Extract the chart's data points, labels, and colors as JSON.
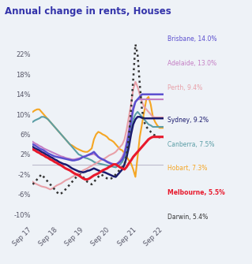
{
  "title": "Annual change in rents, Houses",
  "title_color": "#3333aa",
  "background_color": "#eef2f7",
  "yticks": [
    -10,
    -6,
    -2,
    2,
    6,
    10,
    14,
    18,
    22
  ],
  "xlabels": [
    "Sep 17",
    "Sep 18",
    "Sep 19",
    "Sep 20",
    "Sep 21",
    "Sep 22"
  ],
  "legend": [
    {
      "label": "Brisbane, 14.0%",
      "color": "#5b4fcf",
      "bold": false
    },
    {
      "label": "Adelaide, 13.0%",
      "color": "#c47ec4",
      "bold": false
    },
    {
      "label": "Perth, 9.4%",
      "color": "#e8a0a8",
      "bold": false
    },
    {
      "label": "Sydney, 9.2%",
      "color": "#1a1a6e",
      "bold": false
    },
    {
      "label": "Canberra, 7.5%",
      "color": "#5b9ea6",
      "bold": false
    },
    {
      "label": "Hobart, 7.3%",
      "color": "#f5a623",
      "bold": false
    },
    {
      "label": "Melbourne, 5.5%",
      "color": "#e8192c",
      "bold": true
    },
    {
      "label": "Darwin, 5.4%",
      "color": "#333333",
      "bold": false
    }
  ],
  "series": {
    "Hobart": {
      "color": "#f5a623",
      "style": "solid",
      "linewidth": 1.5,
      "y": [
        10.5,
        10.8,
        11.0,
        11.0,
        10.5,
        10.0,
        9.5,
        9.0,
        8.5,
        8.0,
        7.5,
        7.0,
        6.5,
        6.0,
        5.5,
        5.0,
        4.5,
        4.0,
        3.8,
        3.5,
        3.2,
        3.0,
        2.8,
        2.6,
        2.5,
        2.5,
        2.8,
        3.2,
        5.0,
        6.0,
        6.5,
        6.3,
        6.0,
        5.8,
        5.5,
        5.0,
        4.8,
        4.5,
        4.0,
        3.5,
        3.0,
        2.8,
        2.2,
        1.5,
        0.8,
        0.2,
        -1.0,
        -2.5,
        1.5,
        5.5,
        8.0,
        10.5,
        13.0,
        13.5,
        12.0,
        9.5,
        8.5,
        7.8,
        7.3,
        7.3,
        7.3
      ]
    },
    "Canberra": {
      "color": "#5b9ea6",
      "style": "solid",
      "linewidth": 1.5,
      "y": [
        8.5,
        8.8,
        9.0,
        9.2,
        9.5,
        9.5,
        9.3,
        9.0,
        8.5,
        8.0,
        7.5,
        7.0,
        6.5,
        6.0,
        5.5,
        5.0,
        4.5,
        4.0,
        3.5,
        3.0,
        2.5,
        2.0,
        1.8,
        1.5,
        1.3,
        1.2,
        1.0,
        0.8,
        0.5,
        0.3,
        0.2,
        0.1,
        0.0,
        -0.1,
        -0.2,
        -0.3,
        -0.4,
        -0.5,
        -0.6,
        -0.3,
        0.0,
        0.5,
        1.5,
        3.0,
        5.0,
        7.0,
        9.0,
        10.0,
        10.5,
        10.0,
        9.5,
        9.0,
        8.5,
        8.0,
        7.8,
        7.5,
        7.5,
        7.5,
        7.5,
        7.5,
        7.5
      ]
    },
    "Perth": {
      "color": "#e8a0a8",
      "style": "solid",
      "linewidth": 1.5,
      "y": [
        -3.5,
        -3.8,
        -4.0,
        -4.2,
        -4.4,
        -4.5,
        -4.6,
        -4.8,
        -5.0,
        -4.8,
        -4.5,
        -4.2,
        -4.0,
        -3.8,
        -3.5,
        -3.2,
        -3.0,
        -2.8,
        -2.5,
        -2.3,
        -2.0,
        -1.8,
        -1.5,
        -1.2,
        -1.0,
        -0.8,
        -0.5,
        -0.3,
        0.0,
        0.2,
        0.5,
        0.8,
        1.0,
        1.2,
        1.5,
        1.8,
        2.0,
        2.2,
        2.5,
        3.0,
        3.5,
        4.0,
        5.0,
        7.0,
        9.5,
        12.0,
        15.0,
        16.5,
        15.5,
        14.0,
        12.5,
        11.5,
        11.0,
        10.5,
        10.0,
        9.5,
        9.4,
        9.4,
        9.4,
        9.4,
        9.4
      ]
    },
    "Adelaide": {
      "color": "#c47ec4",
      "style": "solid",
      "linewidth": 1.5,
      "y": [
        4.5,
        4.2,
        4.0,
        3.7,
        3.5,
        3.2,
        3.0,
        2.8,
        2.6,
        2.4,
        2.2,
        2.0,
        1.8,
        1.6,
        1.5,
        1.3,
        1.2,
        1.1,
        1.0,
        1.0,
        1.1,
        1.2,
        1.3,
        1.5,
        1.6,
        1.8,
        1.9,
        2.0,
        2.1,
        1.8,
        1.5,
        1.2,
        1.0,
        0.8,
        0.6,
        0.4,
        0.2,
        0.1,
        0.0,
        0.3,
        0.8,
        1.5,
        2.5,
        4.5,
        7.0,
        9.5,
        11.5,
        12.5,
        13.0,
        13.0,
        13.0,
        13.0,
        13.0,
        13.0,
        13.0,
        13.0,
        13.0,
        13.0,
        13.0,
        13.0,
        13.0
      ]
    },
    "Sydney": {
      "color": "#1a1a6e",
      "style": "solid",
      "linewidth": 1.8,
      "y": [
        3.5,
        3.2,
        3.0,
        2.8,
        2.5,
        2.3,
        2.0,
        1.8,
        1.5,
        1.3,
        1.0,
        0.8,
        0.5,
        0.3,
        0.1,
        0.0,
        -0.2,
        -0.5,
        -0.8,
        -1.0,
        -1.2,
        -1.4,
        -1.5,
        -1.6,
        -1.5,
        -1.3,
        -1.2,
        -1.0,
        -0.8,
        -1.0,
        -1.2,
        -1.4,
        -1.5,
        -1.6,
        -1.8,
        -2.0,
        -2.2,
        -2.4,
        -2.5,
        -2.0,
        -1.5,
        -1.0,
        0.0,
        1.5,
        3.5,
        6.0,
        8.0,
        9.0,
        9.5,
        9.5,
        9.3,
        9.2,
        9.2,
        9.2,
        9.2,
        9.2,
        9.2,
        9.2,
        9.2,
        9.2,
        9.2
      ]
    },
    "Brisbane": {
      "color": "#5b4fcf",
      "style": "solid",
      "linewidth": 1.8,
      "y": [
        4.0,
        3.8,
        3.5,
        3.2,
        3.0,
        2.8,
        2.5,
        2.2,
        2.0,
        1.8,
        1.6,
        1.5,
        1.4,
        1.3,
        1.2,
        1.1,
        1.0,
        0.9,
        0.8,
        0.8,
        0.9,
        1.0,
        1.2,
        1.5,
        1.6,
        1.8,
        2.0,
        2.2,
        2.5,
        2.0,
        1.5,
        1.2,
        1.0,
        0.8,
        0.5,
        0.3,
        0.1,
        0.0,
        -0.1,
        0.2,
        0.5,
        1.0,
        2.0,
        4.0,
        6.0,
        8.5,
        11.0,
        12.5,
        13.0,
        13.5,
        14.0,
        14.0,
        14.0,
        14.0,
        14.0,
        14.0,
        14.0,
        14.0,
        14.0,
        14.0,
        14.0
      ]
    },
    "Melbourne": {
      "color": "#e8192c",
      "style": "solid",
      "linewidth": 2.2,
      "y": [
        3.0,
        2.8,
        2.5,
        2.3,
        2.0,
        1.8,
        1.5,
        1.3,
        1.0,
        0.8,
        0.5,
        0.3,
        0.0,
        -0.2,
        -0.5,
        -0.8,
        -1.0,
        -1.2,
        -1.5,
        -1.8,
        -2.0,
        -2.2,
        -2.5,
        -2.8,
        -3.0,
        -3.0,
        -2.8,
        -2.5,
        -2.2,
        -2.0,
        -1.8,
        -1.5,
        -1.2,
        -1.0,
        -0.8,
        -0.5,
        -0.3,
        0.0,
        0.0,
        -0.3,
        -0.6,
        -0.8,
        -1.0,
        -0.5,
        0.2,
        0.8,
        1.5,
        2.0,
        2.5,
        3.0,
        3.5,
        4.0,
        4.5,
        5.0,
        5.3,
        5.5,
        5.5,
        5.5,
        5.5,
        5.5,
        5.5
      ]
    },
    "Darwin": {
      "color": "#333333",
      "style": "dotted",
      "linewidth": 1.8,
      "y": [
        -4.0,
        -3.5,
        -3.0,
        -2.5,
        -2.0,
        -2.5,
        -3.0,
        -3.5,
        -4.0,
        -4.5,
        -5.0,
        -5.5,
        -6.0,
        -5.8,
        -5.5,
        -5.0,
        -4.5,
        -4.0,
        -3.5,
        -3.0,
        -2.5,
        -2.3,
        -2.0,
        -2.5,
        -3.0,
        -3.5,
        -3.8,
        -4.0,
        -3.5,
        -3.0,
        -2.5,
        -2.0,
        -2.2,
        -2.5,
        -2.8,
        -3.0,
        -2.8,
        -2.5,
        -2.0,
        -1.5,
        -1.0,
        -0.5,
        0.0,
        2.0,
        5.5,
        11.0,
        17.0,
        24.0,
        22.0,
        16.0,
        11.0,
        8.5,
        7.5,
        7.0,
        6.5,
        6.0,
        5.8,
        5.6,
        5.4,
        5.4,
        5.4
      ]
    }
  }
}
